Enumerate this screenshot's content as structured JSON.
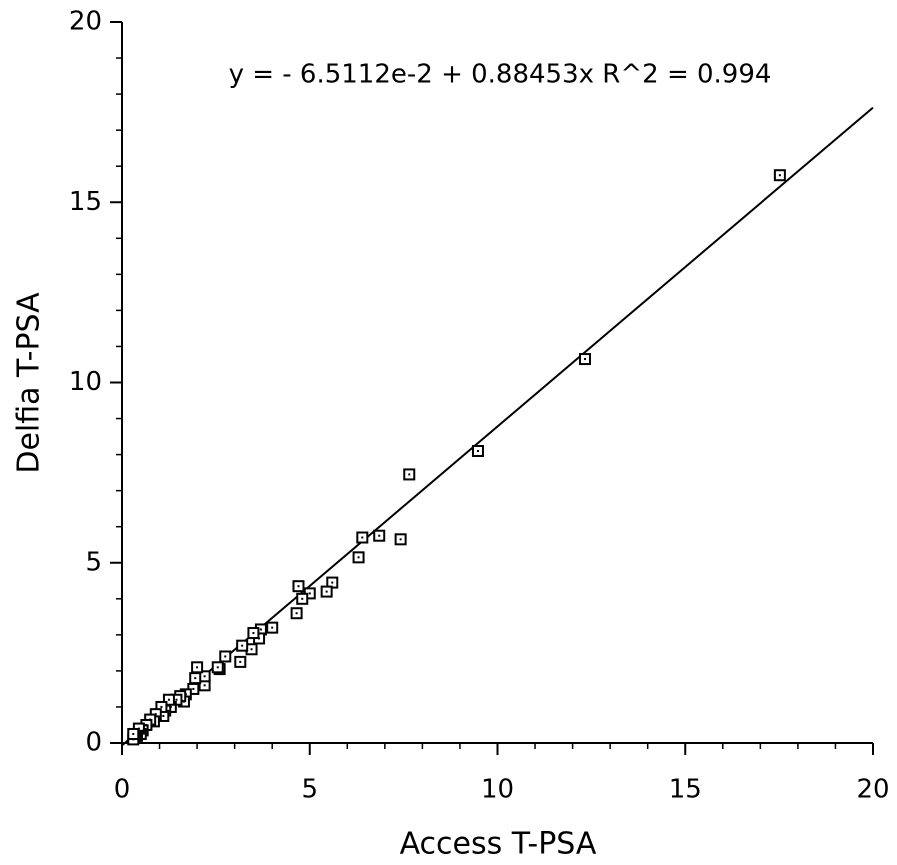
{
  "chart_data": {
    "type": "scatter",
    "annotation": "y =  - 6.5112e-2 + 0.88453x   R^2 = 0.994",
    "x_label": "Access T-PSA",
    "y_label": "Delfia T-PSA",
    "fit": {
      "intercept": -0.065112,
      "slope": 0.88453
    },
    "xlim": [
      0,
      20
    ],
    "ylim": [
      0,
      20
    ],
    "xticks": [
      0,
      5,
      10,
      15,
      20
    ],
    "yticks": [
      0,
      5,
      10,
      15,
      20
    ],
    "xminorticks": [
      1,
      2,
      3,
      4,
      6,
      7,
      8,
      9,
      11,
      12,
      13,
      14,
      16,
      17,
      18,
      19
    ],
    "yminorticks": [
      1,
      2,
      3,
      4,
      6,
      7,
      8,
      9,
      11,
      12,
      13,
      14,
      16,
      17,
      18,
      19
    ],
    "color": "#000000",
    "x": [
      17.52,
      12.33,
      9.48,
      7.65,
      7.42,
      6.85,
      6.4,
      6.3,
      5.6,
      5.45,
      5.0,
      4.8,
      4.7,
      4.65,
      4.0,
      3.7,
      3.65,
      3.5,
      3.45,
      3.2,
      3.15,
      2.75,
      2.6,
      2.55,
      2.2,
      2.2,
      2.0,
      1.95,
      1.9,
      1.7,
      1.65,
      1.55,
      1.45,
      1.3,
      1.25,
      1.15,
      1.1,
      1.05,
      0.9,
      0.85,
      0.75,
      0.65,
      0.55,
      0.5,
      0.45,
      0.4,
      0.35,
      0.3,
      0.3
    ],
    "y": [
      15.75,
      10.65,
      8.1,
      7.45,
      5.65,
      5.75,
      5.7,
      5.15,
      4.45,
      4.2,
      4.15,
      4.0,
      4.35,
      3.6,
      3.2,
      3.15,
      2.9,
      3.05,
      2.6,
      2.7,
      2.25,
      2.4,
      2.05,
      2.1,
      1.6,
      1.85,
      2.1,
      1.8,
      1.5,
      1.35,
      1.15,
      1.3,
      1.2,
      1.0,
      1.2,
      0.9,
      0.75,
      1.0,
      0.8,
      0.6,
      0.65,
      0.5,
      0.35,
      0.25,
      0.4,
      0.2,
      0.15,
      0.1,
      0.25
    ]
  }
}
